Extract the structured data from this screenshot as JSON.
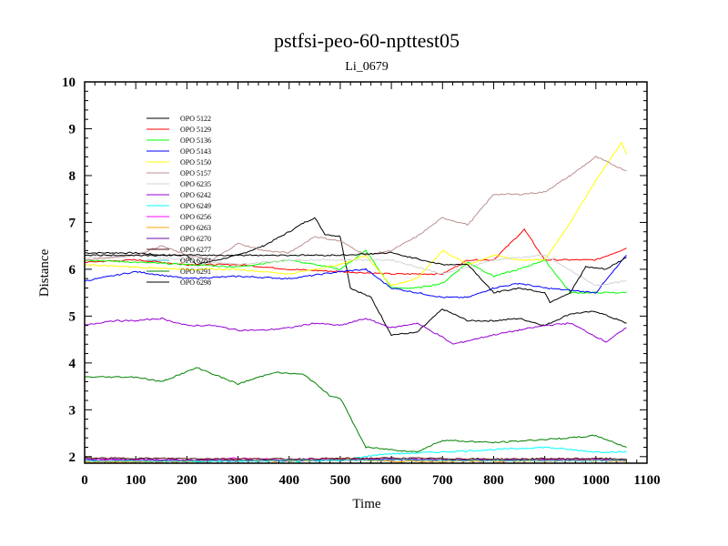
{
  "chart_data": {
    "type": "line",
    "title": "pstfsi-peo-60-npttest05",
    "subtitle": "Li_0679",
    "xlabel": "Time",
    "ylabel": "Distance",
    "xlim": [
      0,
      1100
    ],
    "ylim": [
      1.86,
      10
    ],
    "xticks": [
      0,
      100,
      200,
      300,
      400,
      500,
      600,
      700,
      800,
      900,
      1000,
      1100
    ],
    "yticks": [
      2,
      3,
      4,
      5,
      6,
      7,
      8,
      9,
      10
    ],
    "grid": false,
    "legend_placement": "top-left",
    "series": [
      {
        "name": "OPO 5122",
        "color": "#000000",
        "x": [
          0,
          50,
          100,
          150,
          200,
          220,
          260,
          300,
          350,
          400,
          430,
          450,
          470,
          500,
          520,
          560,
          600,
          650,
          700,
          750,
          800,
          850,
          900,
          950,
          1000,
          1060
        ],
        "y": [
          6.35,
          6.35,
          6.35,
          6.3,
          6.3,
          6.1,
          6.2,
          6.3,
          6.5,
          6.8,
          7.0,
          7.1,
          6.75,
          6.7,
          5.6,
          5.4,
          4.6,
          4.65,
          5.15,
          4.9,
          4.9,
          4.95,
          4.8,
          5.05,
          5.1,
          4.85
        ]
      },
      {
        "name": "OPO 5129",
        "color": "#ff0000",
        "x": [
          0,
          100,
          200,
          300,
          400,
          500,
          600,
          700,
          750,
          800,
          860,
          900,
          950,
          1000,
          1060
        ],
        "y": [
          6.15,
          6.2,
          6.1,
          6.1,
          6.0,
          5.95,
          5.9,
          5.9,
          6.2,
          6.2,
          6.85,
          6.2,
          6.2,
          6.2,
          6.45
        ]
      },
      {
        "name": "OPO 5136",
        "color": "#00ff00",
        "x": [
          0,
          100,
          200,
          300,
          400,
          500,
          550,
          600,
          650,
          700,
          750,
          800,
          850,
          900,
          950,
          1000,
          1060
        ],
        "y": [
          6.2,
          6.15,
          6.1,
          6.05,
          6.2,
          6.0,
          6.4,
          5.6,
          5.6,
          5.7,
          6.15,
          5.85,
          6.0,
          6.2,
          5.5,
          5.5,
          5.5
        ]
      },
      {
        "name": "OPO 5143",
        "color": "#0000ff",
        "x": [
          0,
          100,
          200,
          300,
          400,
          500,
          550,
          600,
          650,
          700,
          750,
          800,
          850,
          900,
          950,
          1000,
          1060
        ],
        "y": [
          5.75,
          5.95,
          5.8,
          5.85,
          5.8,
          5.95,
          6.0,
          5.6,
          5.5,
          5.4,
          5.4,
          5.6,
          5.7,
          5.6,
          5.55,
          5.5,
          6.3
        ]
      },
      {
        "name": "OPO 5150",
        "color": "#ffff00",
        "x": [
          0,
          100,
          200,
          300,
          400,
          500,
          550,
          600,
          650,
          700,
          750,
          800,
          850,
          900,
          950,
          1000,
          1050,
          1060
        ],
        "y": [
          6.1,
          6.05,
          6.0,
          6.0,
          5.9,
          6.1,
          6.3,
          5.65,
          5.8,
          6.4,
          6.1,
          6.3,
          6.2,
          6.2,
          7.0,
          7.9,
          8.7,
          8.45
        ]
      },
      {
        "name": "OPO 5157",
        "color": "#bc8f8f",
        "x": [
          0,
          100,
          150,
          200,
          250,
          300,
          350,
          400,
          450,
          500,
          550,
          600,
          650,
          700,
          750,
          800,
          850,
          900,
          950,
          1000,
          1060
        ],
        "y": [
          6.2,
          6.3,
          6.5,
          6.3,
          6.2,
          6.55,
          6.4,
          6.35,
          6.7,
          6.6,
          6.3,
          6.4,
          6.7,
          7.1,
          6.95,
          7.6,
          7.6,
          7.65,
          8.0,
          8.4,
          8.1
        ]
      },
      {
        "name": "OPO 6235",
        "color": "#d3d3d3",
        "x": [
          0,
          100,
          200,
          300,
          400,
          500,
          600,
          700,
          800,
          900,
          1000,
          1060
        ],
        "y": [
          6.25,
          6.3,
          6.2,
          6.1,
          6.2,
          6.2,
          6.2,
          5.9,
          6.2,
          6.3,
          5.65,
          5.75
        ]
      },
      {
        "name": "OPO 6242",
        "color": "#9400d3",
        "x": [
          0,
          50,
          100,
          150,
          200,
          250,
          300,
          350,
          400,
          450,
          500,
          550,
          600,
          650,
          700,
          720,
          800,
          850,
          900,
          950,
          1020,
          1060
        ],
        "y": [
          4.8,
          4.9,
          4.9,
          4.95,
          4.8,
          4.8,
          4.7,
          4.7,
          4.75,
          4.85,
          4.8,
          4.95,
          4.75,
          4.85,
          4.55,
          4.4,
          4.6,
          4.7,
          4.8,
          4.85,
          4.45,
          4.75
        ]
      },
      {
        "name": "OPO 6249",
        "color": "#00ffff",
        "x": [
          0,
          200,
          400,
          500,
          580,
          700,
          800,
          900,
          1000,
          1060
        ],
        "y": [
          1.9,
          1.9,
          1.9,
          1.92,
          2.05,
          2.1,
          2.15,
          2.2,
          2.1,
          2.1
        ]
      },
      {
        "name": "OPO 6256",
        "color": "#ff00ff",
        "x": [
          0,
          200,
          300,
          400,
          500,
          600,
          800,
          1000,
          1060
        ],
        "y": [
          1.93,
          1.92,
          1.97,
          1.93,
          1.96,
          1.93,
          1.92,
          1.94,
          1.9
        ]
      },
      {
        "name": "OPO 6263",
        "color": "#ffa500",
        "x": [
          0,
          200,
          300,
          400,
          500,
          600,
          800,
          1000,
          1060
        ],
        "y": [
          1.88,
          1.9,
          1.93,
          1.9,
          1.95,
          1.9,
          1.9,
          1.92,
          1.9
        ]
      },
      {
        "name": "OPO 6270",
        "color": "#6a0dad",
        "x": [
          0,
          200,
          400,
          600,
          800,
          1000,
          1060
        ],
        "y": [
          1.95,
          1.93,
          1.92,
          1.95,
          1.93,
          1.95,
          1.92
        ]
      },
      {
        "name": "OPO 6277",
        "color": "#5a1010",
        "x": [
          0,
          200,
          400,
          600,
          800,
          1000,
          1060
        ],
        "y": [
          1.97,
          1.96,
          1.95,
          1.97,
          1.95,
          1.96,
          1.95
        ]
      },
      {
        "name": "OPO 6284",
        "color": "#20c0c0",
        "x": [
          0,
          200,
          400,
          600,
          800,
          1000,
          1060
        ],
        "y": [
          1.91,
          1.9,
          1.92,
          1.93,
          1.92,
          1.91,
          1.92
        ]
      },
      {
        "name": "OPO 6291",
        "color": "#008000",
        "x": [
          0,
          100,
          150,
          220,
          300,
          370,
          430,
          480,
          500,
          550,
          650,
          700,
          800,
          950,
          1000,
          1060
        ],
        "y": [
          3.7,
          3.7,
          3.6,
          3.9,
          3.55,
          3.8,
          3.75,
          3.3,
          3.25,
          2.2,
          2.1,
          2.35,
          2.3,
          2.4,
          2.45,
          2.2
        ]
      },
      {
        "name": "OPO 6298",
        "color": "#000000",
        "x": [
          0,
          100,
          200,
          300,
          400,
          500,
          600,
          700,
          750,
          800,
          850,
          900,
          910,
          950,
          980,
          1020,
          1060
        ],
        "y": [
          6.3,
          6.3,
          6.3,
          6.3,
          6.3,
          6.3,
          6.35,
          6.1,
          6.1,
          5.5,
          5.6,
          5.5,
          5.3,
          5.5,
          6.05,
          6.0,
          6.25
        ]
      }
    ]
  }
}
